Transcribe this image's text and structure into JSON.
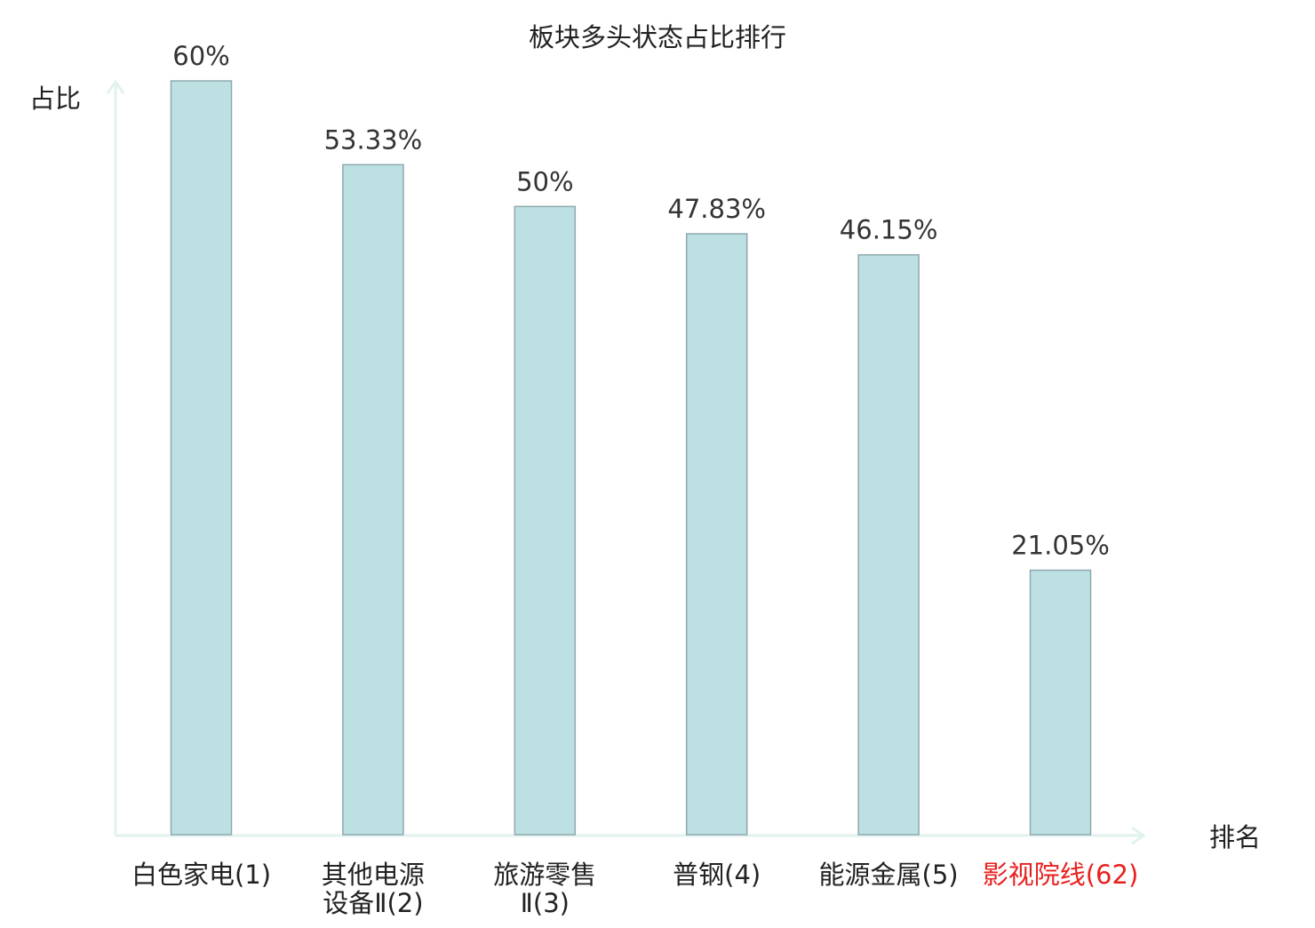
{
  "chart_data": {
    "type": "bar",
    "title": "板块多头状态占比排行",
    "xlabel": "排名",
    "ylabel": "占比",
    "ylim": [
      0,
      60
    ],
    "grid": false,
    "legend": "none",
    "categories": [
      {
        "lines": [
          "白色家电",
          "(1)"
        ],
        "highlight": false
      },
      {
        "lines": [
          "其他电源",
          "设备Ⅱ(2)"
        ],
        "highlight": false
      },
      {
        "lines": [
          "旅游零售",
          "Ⅱ(3)"
        ],
        "highlight": false
      },
      {
        "lines": [
          "普钢",
          "(4)"
        ],
        "highlight": false
      },
      {
        "lines": [
          "能源金属",
          "(5)"
        ],
        "highlight": false
      },
      {
        "lines": [
          "影视院线",
          "(62)"
        ],
        "highlight": true
      }
    ],
    "values": [
      60,
      53.33,
      50,
      47.83,
      46.15,
      21.05
    ],
    "value_labels": [
      "60%",
      "53.33%",
      "50%",
      "47.83%",
      "46.15%",
      "21.05%"
    ],
    "colors": {
      "bar_fill": "#bde0e3",
      "bar_stroke": "#8fa9ad",
      "axis": "#e0f2ef",
      "text": "#333333",
      "label_text": "#222222",
      "highlight": "#e8201e"
    }
  }
}
